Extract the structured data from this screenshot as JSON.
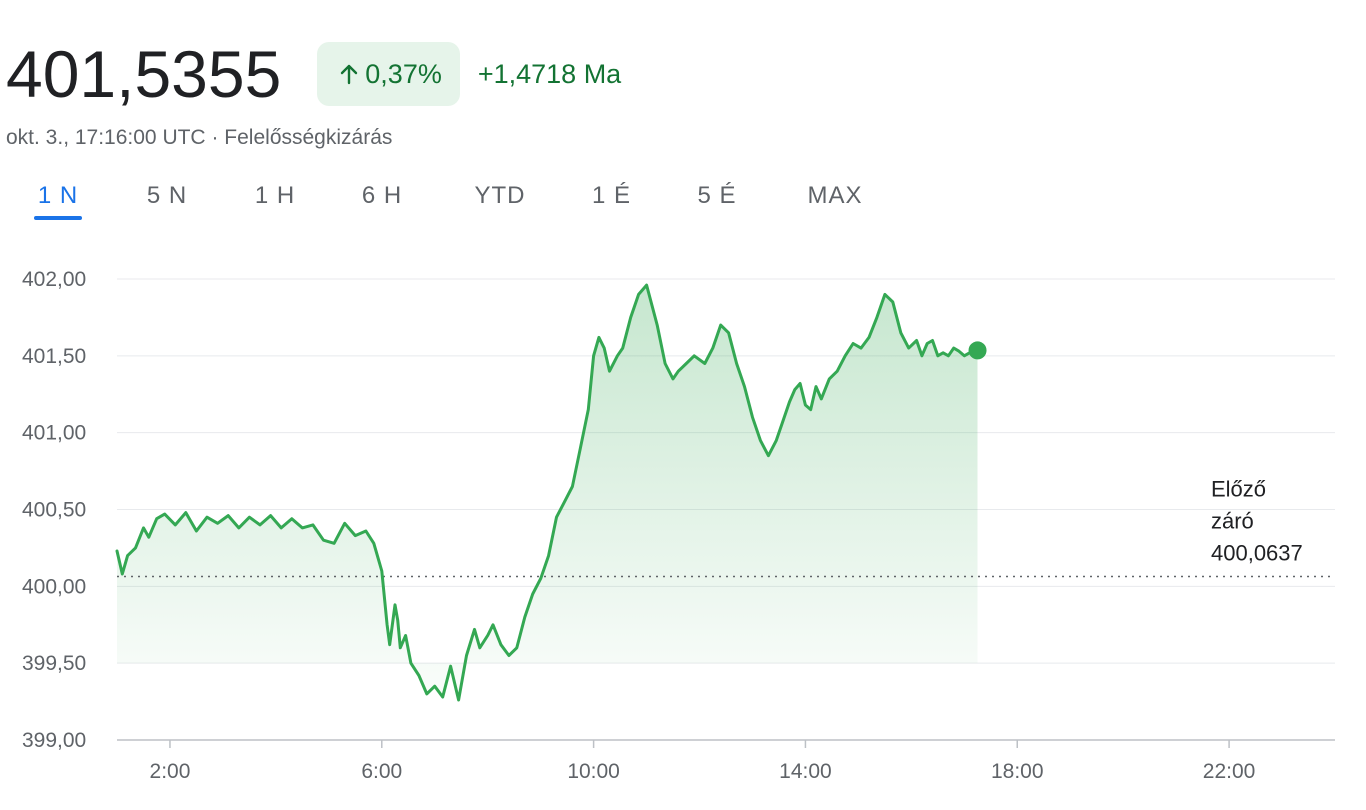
{
  "header": {
    "price": "401,5355",
    "change_percent": "0,37%",
    "change_abs": "+1,4718 Ma",
    "timestamp": "okt. 3., 17:16:00 UTC",
    "separator": "·",
    "disclaimer": "Felelősségkizárás",
    "arrow_icon": "arrow-up-icon"
  },
  "tabs": [
    {
      "label": "1 N",
      "active": true
    },
    {
      "label": "5 N",
      "active": false
    },
    {
      "label": "1 H",
      "active": false
    },
    {
      "label": "6 H",
      "active": false
    },
    {
      "label": "YTD",
      "active": false
    },
    {
      "label": "1 É",
      "active": false
    },
    {
      "label": "5 É",
      "active": false
    },
    {
      "label": "MAX",
      "active": false
    }
  ],
  "colors": {
    "line": "#34a853",
    "positive_text": "#137333",
    "pill_bg": "#e6f4ea",
    "accent": "#1a73e8",
    "grid": "#e8eaed",
    "axis_text": "#5f6368"
  },
  "chart_data": {
    "type": "area",
    "x_unit": "hours",
    "xlim": [
      1,
      24
    ],
    "ylim": [
      399,
      402
    ],
    "x_ticks": [
      2,
      6,
      10,
      14,
      18,
      22
    ],
    "x_tick_labels": [
      "2:00",
      "6:00",
      "10:00",
      "14:00",
      "18:00",
      "22:00"
    ],
    "y_ticks": [
      399,
      399.5,
      400,
      400.5,
      401,
      401.5,
      402
    ],
    "y_tick_labels": [
      "399,00",
      "399,50",
      "400,00",
      "400,50",
      "401,00",
      "401,50",
      "402,00"
    ],
    "grid": true,
    "previous_close": 400.0637,
    "previous_close_label": [
      "Előző",
      "záró",
      "400,0637"
    ],
    "series": [
      {
        "x": [
          1.0,
          1.1,
          1.2,
          1.35,
          1.5,
          1.6,
          1.75,
          1.9,
          2.1,
          2.3,
          2.5,
          2.7,
          2.9,
          3.1,
          3.3,
          3.5,
          3.7,
          3.9,
          4.1,
          4.3,
          4.5,
          4.7,
          4.9,
          5.1,
          5.3,
          5.5,
          5.7,
          5.85,
          6.0,
          6.1,
          6.15,
          6.25,
          6.3,
          6.35,
          6.45,
          6.55,
          6.7,
          6.85,
          7.0,
          7.15,
          7.3,
          7.45,
          7.6,
          7.75,
          7.85,
          8.0,
          8.1,
          8.25,
          8.4,
          8.55,
          8.7,
          8.85,
          9.0,
          9.15,
          9.3,
          9.45,
          9.6,
          9.75,
          9.9,
          10.0,
          10.1,
          10.2,
          10.3,
          10.45,
          10.55,
          10.7,
          10.85,
          11.0,
          11.2,
          11.35,
          11.5,
          11.6,
          11.75,
          11.9,
          12.1,
          12.25,
          12.4,
          12.55,
          12.7,
          12.85,
          13.0,
          13.15,
          13.3,
          13.45,
          13.55,
          13.7,
          13.8,
          13.9,
          14.0,
          14.1,
          14.2,
          14.3,
          14.45,
          14.6,
          14.75,
          14.9,
          15.05,
          15.2,
          15.35,
          15.5,
          15.65,
          15.8,
          15.95,
          16.1,
          16.2,
          16.3,
          16.4,
          16.5,
          16.6,
          16.7,
          16.8,
          16.9,
          17.0,
          17.1,
          17.25
        ],
        "y": [
          400.23,
          400.08,
          400.2,
          400.25,
          400.38,
          400.32,
          400.44,
          400.47,
          400.4,
          400.48,
          400.36,
          400.45,
          400.41,
          400.46,
          400.38,
          400.45,
          400.4,
          400.46,
          400.38,
          400.44,
          400.38,
          400.4,
          400.3,
          400.28,
          400.41,
          400.33,
          400.36,
          400.28,
          400.1,
          399.75,
          399.62,
          399.88,
          399.78,
          399.6,
          399.68,
          399.5,
          399.42,
          399.3,
          399.35,
          399.28,
          399.48,
          399.26,
          399.55,
          399.72,
          399.6,
          399.68,
          399.75,
          399.62,
          399.55,
          399.6,
          399.8,
          399.95,
          400.05,
          400.2,
          400.45,
          400.55,
          400.65,
          400.9,
          401.15,
          401.5,
          401.62,
          401.55,
          401.4,
          401.5,
          401.55,
          401.75,
          401.9,
          401.96,
          401.7,
          401.45,
          401.35,
          401.4,
          401.45,
          401.5,
          401.45,
          401.55,
          401.7,
          401.65,
          401.45,
          401.3,
          401.1,
          400.95,
          400.85,
          400.95,
          401.05,
          401.2,
          401.28,
          401.32,
          401.18,
          401.15,
          401.3,
          401.22,
          401.35,
          401.4,
          401.5,
          401.58,
          401.55,
          401.62,
          401.75,
          401.9,
          401.85,
          401.65,
          401.55,
          401.6,
          401.5,
          401.58,
          401.6,
          401.5,
          401.52,
          401.5,
          401.55,
          401.53,
          401.5,
          401.52,
          401.5355
        ]
      }
    ]
  }
}
